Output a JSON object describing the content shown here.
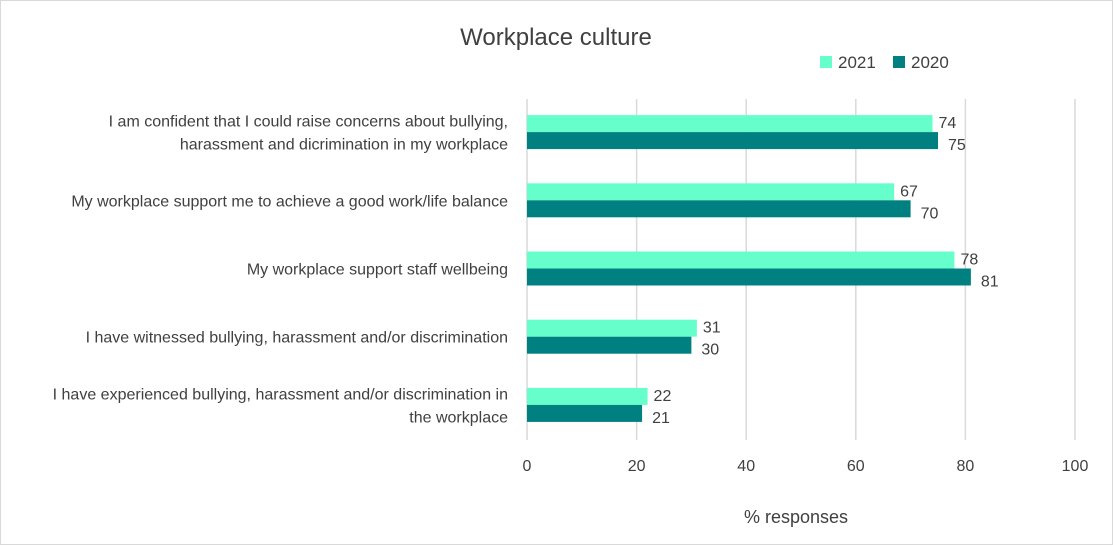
{
  "chart_data": {
    "type": "bar",
    "orientation": "horizontal",
    "title": "Workplace culture",
    "xlabel": "% responses",
    "ylabel": "",
    "xlim": [
      0,
      100
    ],
    "xticks": [
      0,
      20,
      40,
      60,
      80,
      100
    ],
    "grid": true,
    "legend_position": "top-right",
    "categories": [
      [
        "I am confident that I could raise concerns about bullying,",
        "harassment and dicrimination in my workplace"
      ],
      [
        "My workplace support me to achieve a good work/life balance"
      ],
      [
        "My workplace support staff wellbeing"
      ],
      [
        "I have witnessed bullying, harassment and/or discrimination"
      ],
      [
        "I have experienced bullying, harassment and/or discrimination in",
        "the workplace"
      ]
    ],
    "series": [
      {
        "name": "2021",
        "color": "#66FFCC",
        "values": [
          74,
          67,
          78,
          31,
          22
        ]
      },
      {
        "name": "2020",
        "color": "#008080",
        "values": [
          75,
          70,
          81,
          30,
          21
        ]
      }
    ]
  }
}
